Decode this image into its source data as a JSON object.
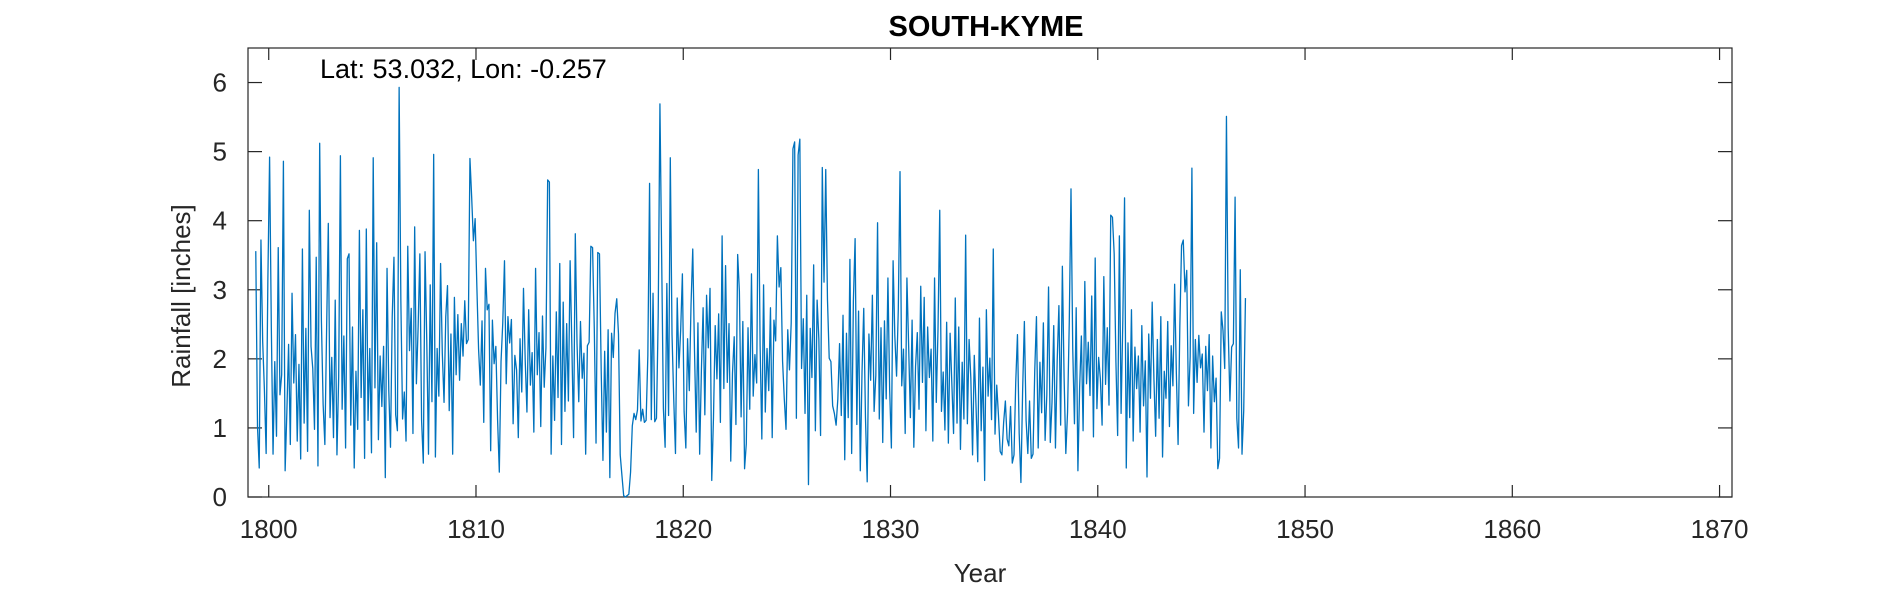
{
  "chart_data": {
    "type": "line",
    "title": "SOUTH-KYME",
    "annotation": "Lat: 53.032, Lon: -0.257",
    "xlabel": "Year",
    "ylabel": "Rainfall [inches]",
    "xlim": [
      1799,
      1870.6
    ],
    "ylim": [
      0,
      6.5
    ],
    "xticks": [
      1800,
      1810,
      1820,
      1830,
      1840,
      1850,
      1860,
      1870
    ],
    "yticks": [
      0,
      1,
      2,
      3,
      4,
      5,
      6
    ],
    "xtick_labels": [
      "1800",
      "1810",
      "1820",
      "1830",
      "1840",
      "1850",
      "1860",
      "1870"
    ],
    "ytick_labels": [
      "0",
      "1",
      "2",
      "3",
      "4",
      "5",
      "6"
    ],
    "grid": false,
    "legend": "none",
    "colors": {
      "line": "#0072BD",
      "axes": "#262626"
    },
    "series": [
      {
        "start_year": 1799.375,
        "step_years": 0.0833333,
        "values": [
          3.56,
          1.02,
          0.42,
          3.72,
          2.25,
          1.55,
          0.63,
          3.14,
          4.92,
          2.46,
          0.62,
          1.96,
          0.88,
          3.61,
          1.48,
          1.77,
          4.86,
          0.38,
          1.23,
          2.21,
          0.76,
          2.95,
          1.65,
          2.35,
          0.81,
          1.92,
          0.55,
          3.59,
          1.07,
          2.44,
          0.66,
          4.15,
          2.18,
          1.86,
          0.98,
          3.47,
          0.45,
          5.12,
          2.55,
          1.34,
          0.76,
          2.41,
          3.96,
          1.15,
          2.02,
          0.86,
          2.85,
          0.61,
          1.74,
          4.94,
          1.27,
          2.33,
          0.71,
          3.45,
          3.52,
          1.04,
          2.46,
          0.42,
          1.82,
          0.98,
          3.86,
          1.44,
          2.71,
          0.56,
          3.88,
          1.11,
          2.15,
          0.64,
          4.91,
          1.58,
          3.68,
          0.83,
          2.04,
          1.31,
          2.18,
          0.28,
          3.31,
          1.55,
          0.72,
          2.61,
          3.47,
          1.19,
          0.96,
          5.93,
          2.84,
          1.13,
          1.52,
          0.81,
          3.63,
          2.12,
          2.73,
          0.92,
          3.91,
          1.64,
          2.46,
          3.52,
          1.11,
          0.49,
          3.55,
          2.27,
          0.62,
          3.07,
          1.38,
          4.96,
          0.58,
          2.15,
          1.46,
          3.38,
          2.08,
          1.37,
          2.61,
          3.06,
          1.25,
          2.36,
          0.62,
          2.89,
          1.77,
          2.64,
          1.69,
          2.51,
          2.04,
          2.84,
          2.22,
          2.28,
          4.9,
          4.34,
          3.71,
          4.03,
          3.05,
          2.14,
          1.62,
          2.55,
          1.08,
          3.31,
          2.71,
          2.79,
          0.67,
          2.56,
          1.93,
          2.18,
          1.12,
          0.36,
          1.96,
          2.52,
          3.42,
          1.64,
          2.61,
          2.23,
          2.57,
          1.06,
          2.05,
          1.84,
          0.86,
          2.29,
          1.52,
          3.02,
          1.98,
          1.23,
          2.71,
          1.62,
          2.09,
          0.94,
          3.31,
          1.77,
          2.38,
          1.02,
          2.62,
          1.59,
          2.16,
          4.59,
          4.56,
          0.62,
          2.04,
          1.11,
          2.68,
          1.44,
          3.38,
          0.76,
          2.82,
          1.24,
          2.51,
          1.39,
          3.42,
          2.2,
          0.86,
          3.81,
          2.22,
          1.38,
          2.54,
          1.72,
          2.08,
          0.62,
          2.19,
          2.24,
          3.63,
          3.61,
          2.43,
          0.78,
          3.54,
          3.52,
          1.82,
          0.53,
          2.11,
          0.94,
          2.42,
          0.28,
          2.37,
          2.02,
          2.66,
          2.87,
          2.36,
          0.61,
          0.31,
          0.02,
          0.0,
          0.02,
          0.04,
          0.36,
          1.03,
          1.21,
          1.12,
          1.26,
          2.13,
          1.1,
          1.27,
          1.08,
          1.11,
          2.05,
          4.54,
          1.12,
          2.95,
          1.09,
          1.14,
          2.62,
          5.69,
          3.48,
          1.28,
          0.72,
          3.09,
          1.18,
          4.91,
          2.35,
          1.41,
          0.63,
          2.88,
          1.87,
          2.41,
          3.23,
          1.24,
          0.71,
          2.29,
          1.54,
          2.78,
          3.59,
          2.13,
          0.94,
          2.52,
          0.62,
          1.83,
          2.74,
          1.19,
          2.92,
          2.16,
          3.02,
          0.24,
          1.15,
          2.48,
          1.71,
          2.65,
          1.08,
          3.78,
          1.57,
          3.35,
          1.66,
          2.51,
          0.52,
          1.79,
          2.32,
          1.05,
          3.51,
          2.98,
          1.16,
          2.54,
          0.41,
          0.77,
          2.45,
          1.27,
          3.23,
          1.46,
          2.06,
          1.65,
          4.74,
          2.19,
          0.84,
          3.07,
          1.23,
          2.15,
          1.54,
          2.74,
          0.86,
          2.56,
          2.26,
          3.78,
          3.04,
          3.32,
          1.97,
          1.42,
          0.98,
          2.42,
          1.84,
          2.52,
          5.04,
          5.14,
          1.14,
          4.95,
          5.18,
          1.86,
          2.58,
          1.21,
          2.92,
          0.18,
          2.44,
          1.73,
          3.36,
          0.96,
          2.85,
          2.29,
          0.89,
          4.77,
          3.11,
          4.74,
          2.86,
          2.01,
          1.96,
          1.32,
          1.21,
          1.04,
          1.42,
          2.22,
          1.18,
          2.63,
          0.54,
          2.37,
          1.15,
          3.44,
          0.63,
          2.84,
          3.74,
          1.05,
          2.69,
          0.38,
          1.81,
          2.73,
          1.15,
          0.22,
          2.36,
          1.69,
          2.92,
          1.24,
          1.76,
          3.97,
          1.13,
          2.45,
          0.79,
          2.55,
          1.42,
          3.17,
          1.56,
          0.71,
          3.42,
          2.33,
          1.75,
          2.71,
          4.71,
          1.61,
          2.14,
          0.92,
          3.17,
          2.18,
          1.15,
          2.56,
          0.72,
          1.89,
          2.38,
          1.27,
          3.05,
          1.66,
          2.89,
          0.96,
          2.46,
          1.73,
          2.14,
          0.81,
          3.17,
          1.37,
          2.43,
          4.15,
          1.24,
          1.81,
          0.97,
          2.53,
          0.78,
          2.37,
          1.65,
          0.92,
          2.88,
          1.07,
          2.46,
          0.69,
          1.95,
          1.13,
          3.79,
          1.06,
          2.28,
          1.72,
          0.61,
          2.05,
          1.32,
          0.51,
          2.59,
          0.96,
          1.88,
          0.24,
          2.71,
          1.46,
          2.01,
          1.12,
          3.59,
          0.91,
          1.62,
          1.18,
          0.66,
          0.61,
          1.08,
          1.39,
          0.84,
          0.74,
          1.31,
          0.49,
          0.61,
          1.66,
          2.35,
          0.92,
          0.21,
          1.55,
          2.54,
          1.11,
          0.63,
          1.39,
          0.56,
          0.62,
          1.82,
          2.61,
          0.71,
          1.95,
          1.22,
          2.52,
          0.82,
          1.48,
          3.04,
          0.79,
          1.37,
          2.48,
          0.71,
          1.97,
          2.77,
          1.04,
          3.34,
          1.73,
          0.63,
          1.23,
          2.54,
          4.46,
          2.15,
          1.06,
          2.74,
          0.38,
          1.59,
          2.33,
          0.96,
          3.12,
          1.64,
          2.24,
          1.47,
          2.91,
          0.87,
          3.46,
          1.28,
          2.02,
          1.71,
          1.04,
          3.19,
          1.63,
          2.45,
          1.33,
          4.08,
          4.05,
          3.52,
          1.96,
          0.89,
          3.78,
          1.21,
          2.56,
          4.33,
          0.42,
          2.23,
          1.15,
          2.71,
          0.81,
          2.17,
          1.57,
          2.04,
          0.94,
          2.48,
          1.32,
          1.97,
          0.29,
          2.36,
          1.43,
          2.82,
          1.72,
          0.88,
          2.28,
          1.14,
          2.61,
          0.58,
          1.82,
          1.43,
          2.54,
          1.02,
          2.19,
          1.61,
          3.08,
          1.79,
          0.76,
          2.46,
          3.64,
          3.72,
          2.97,
          3.28,
          1.32,
          2.03,
          4.76,
          1.21,
          2.28,
          1.66,
          2.34,
          1.87,
          2.07,
          0.94,
          2.18,
          1.54,
          2.35,
          0.71,
          2.04,
          1.38,
          1.72,
          0.41,
          0.56,
          2.68,
          2.41,
          1.86,
          5.51,
          2.45,
          1.39,
          2.17,
          2.22,
          4.34,
          1.14,
          0.71,
          3.29,
          0.62,
          1.25,
          2.88
        ]
      }
    ]
  }
}
